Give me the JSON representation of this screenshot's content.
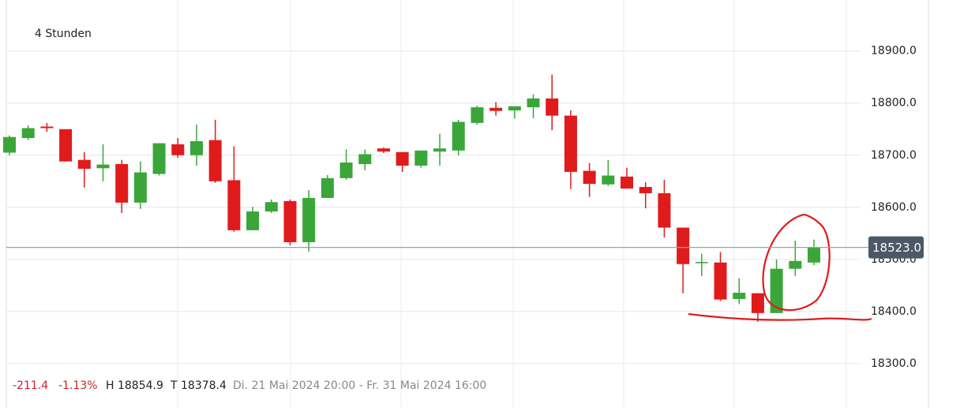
{
  "chart_data": {
    "type": "candlestick",
    "title": "4 Stunden",
    "open": [
      18705,
      18733,
      18755,
      18750,
      18691,
      18675,
      18683,
      18609,
      18664,
      18721,
      18700,
      18729,
      18652,
      18556,
      18592,
      18612,
      18533,
      18618,
      18656,
      18683,
      18713,
      18706,
      18680,
      18707,
      18709,
      18762,
      18791,
      18786,
      18792,
      18809,
      18776,
      18670,
      18644,
      18659,
      18639,
      18627,
      18561,
      18493,
      18494,
      18424,
      18435,
      18397,
      18482,
      18494
    ],
    "high": [
      18738,
      18757,
      18762,
      18750,
      18706,
      18721,
      18691,
      18688,
      18723,
      18733,
      18759,
      18768,
      18717,
      18601,
      18615,
      18615,
      18633,
      18662,
      18711,
      18711,
      18715,
      18706,
      18709,
      18741,
      18768,
      18795,
      18802,
      18794,
      18817,
      18855,
      18786,
      18685,
      18691,
      18676,
      18648,
      18653,
      18561,
      18511,
      18514,
      18464,
      18435,
      18500,
      18536,
      18538
    ],
    "low": [
      18700,
      18729,
      18745,
      18688,
      18638,
      18650,
      18589,
      18597,
      18661,
      18695,
      18680,
      18647,
      18553,
      18556,
      18589,
      18527,
      18515,
      18618,
      18653,
      18671,
      18704,
      18668,
      18676,
      18680,
      18700,
      18759,
      18776,
      18770,
      18771,
      18748,
      18635,
      18620,
      18641,
      18636,
      18598,
      18542,
      18435,
      18468,
      18420,
      18414,
      18380,
      18397,
      18468,
      18489
    ],
    "close": [
      18735,
      18752,
      18752,
      18688,
      18674,
      18682,
      18609,
      18667,
      18723,
      18700,
      18727,
      18650,
      18556,
      18592,
      18610,
      18533,
      18618,
      18656,
      18686,
      18702,
      18707,
      18680,
      18709,
      18713,
      18764,
      18792,
      18785,
      18794,
      18809,
      18776,
      18668,
      18645,
      18661,
      18636,
      18627,
      18561,
      18491,
      18495,
      18423,
      18436,
      18397,
      18482,
      18497,
      18523
    ],
    "up_color": "#3aa63a",
    "down_color": "#e01b1b",
    "ylim": [
      18215,
      18998
    ],
    "yticks": [
      {
        "value": 18300,
        "label": "18300.0"
      },
      {
        "value": 18400,
        "label": "18400.0"
      },
      {
        "value": 18500,
        "label": "18500.0"
      },
      {
        "value": 18600,
        "label": "18600.0"
      },
      {
        "value": 18700,
        "label": "18700.0"
      },
      {
        "value": 18800,
        "label": "18800.0"
      },
      {
        "value": 18900,
        "label": "18900.0"
      }
    ],
    "grid": true,
    "current_price": {
      "value": 18523,
      "label": "18523.0"
    },
    "summary": {
      "change": "-211.4",
      "change_pct": "-1.13%",
      "high": "H 18854.9",
      "low": "T 18378.4",
      "range": "Di. 21 Mai 2024 20:00 - Fr. 31 Mai 2024 16:00"
    }
  }
}
